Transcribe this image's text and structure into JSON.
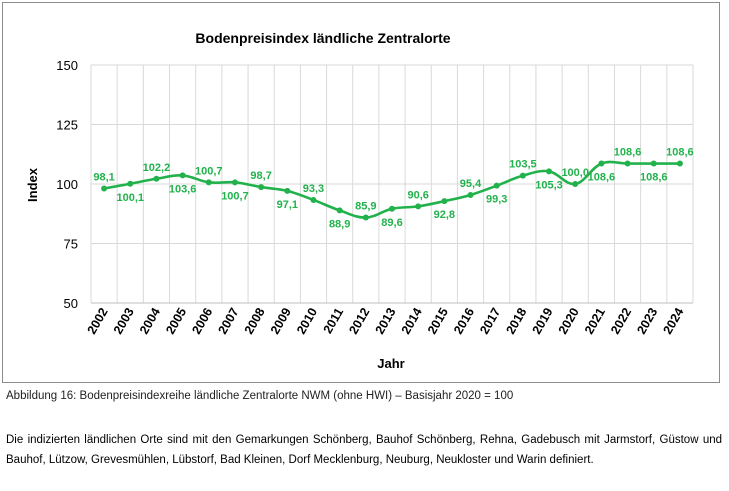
{
  "chart_data": {
    "type": "line",
    "title": "Bodenpreisindex ländliche Zentralorte",
    "xlabel": "Jahr",
    "ylabel": "Index",
    "ylim": [
      50,
      150
    ],
    "yticks": [
      "50",
      "75",
      "100",
      "125",
      "150"
    ],
    "grid": "on",
    "legend": "none",
    "x": [
      "2002",
      "2003",
      "2004",
      "2005",
      "2006",
      "2007",
      "2008",
      "2009",
      "2010",
      "2011",
      "2012",
      "2013",
      "2014",
      "2015",
      "2016",
      "2017",
      "2018",
      "2019",
      "2020",
      "2021",
      "2022",
      "2023",
      "2024"
    ],
    "series": [
      {
        "values": [
          98.1,
          100.1,
          102.2,
          103.6,
          100.7,
          100.7,
          98.7,
          97.1,
          93.3,
          88.9,
          85.9,
          89.6,
          90.6,
          92.8,
          95.4,
          99.3,
          103.5,
          105.3,
          100.0,
          108.6,
          108.6,
          108.6,
          108.6
        ],
        "labels": [
          "98,1",
          "100,1",
          "102,2",
          "103,6",
          "100,7",
          "100,7",
          "98,7",
          "97,1",
          "93,3",
          "88,9",
          "85,9",
          "89,6",
          "90,6",
          "92,8",
          "95,4",
          "99,3",
          "103,5",
          "105,3",
          "100,0",
          "108,6",
          "108,6",
          "108,6",
          "108,6"
        ],
        "label_pos": [
          "above",
          "below",
          "above",
          "below",
          "above",
          "below",
          "above",
          "below",
          "above",
          "below",
          "above",
          "below",
          "above",
          "below",
          "above",
          "below",
          "above",
          "below",
          "above",
          "below",
          "above",
          "below",
          "above"
        ],
        "color": "#22b24c"
      }
    ]
  },
  "caption": "Abbildung 16: Bodenpreisindexreihe ländliche Zentralorte NWM (ohne HWI) – Basisjahr 2020 = 100",
  "body_text": "Die indizierten ländlichen Orte sind mit den Gemarkungen Schönberg, Bauhof Schönberg, Rehna, Gadebusch mit Jarmstorf, Güstow und Bauhof, Lützow, Grevesmühlen, Lübstorf, Bad Kleinen, Dorf Mecklenburg, Neuburg, Neukloster und Warin definiert."
}
